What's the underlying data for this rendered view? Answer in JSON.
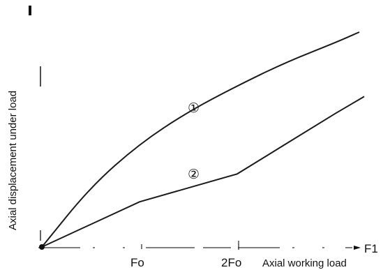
{
  "chart_data": {
    "type": "line",
    "title": "",
    "ylabel": "Axial displacement under load",
    "xlabel": "Axial working load",
    "x_axis_symbol": "F1",
    "x_ticks": [
      {
        "label": "Fo",
        "value": 1
      },
      {
        "label": "2Fo",
        "value": 2
      }
    ],
    "xlim": [
      0,
      3.4
    ],
    "ylim": [
      0,
      1
    ],
    "series": [
      {
        "name": "①",
        "x": [
          0,
          0.5,
          1,
          1.5,
          2,
          2.5,
          3,
          3.25
        ],
        "y": [
          0,
          0.28,
          0.48,
          0.63,
          0.75,
          0.86,
          0.95,
          1.0
        ]
      },
      {
        "name": "②",
        "x": [
          0,
          1,
          2,
          2.5,
          3,
          3.3
        ],
        "y": [
          0,
          0.21,
          0.34,
          0.48,
          0.62,
          0.7
        ]
      }
    ],
    "colors": {
      "line": "#1a1a1a",
      "axis": "#333333"
    }
  }
}
